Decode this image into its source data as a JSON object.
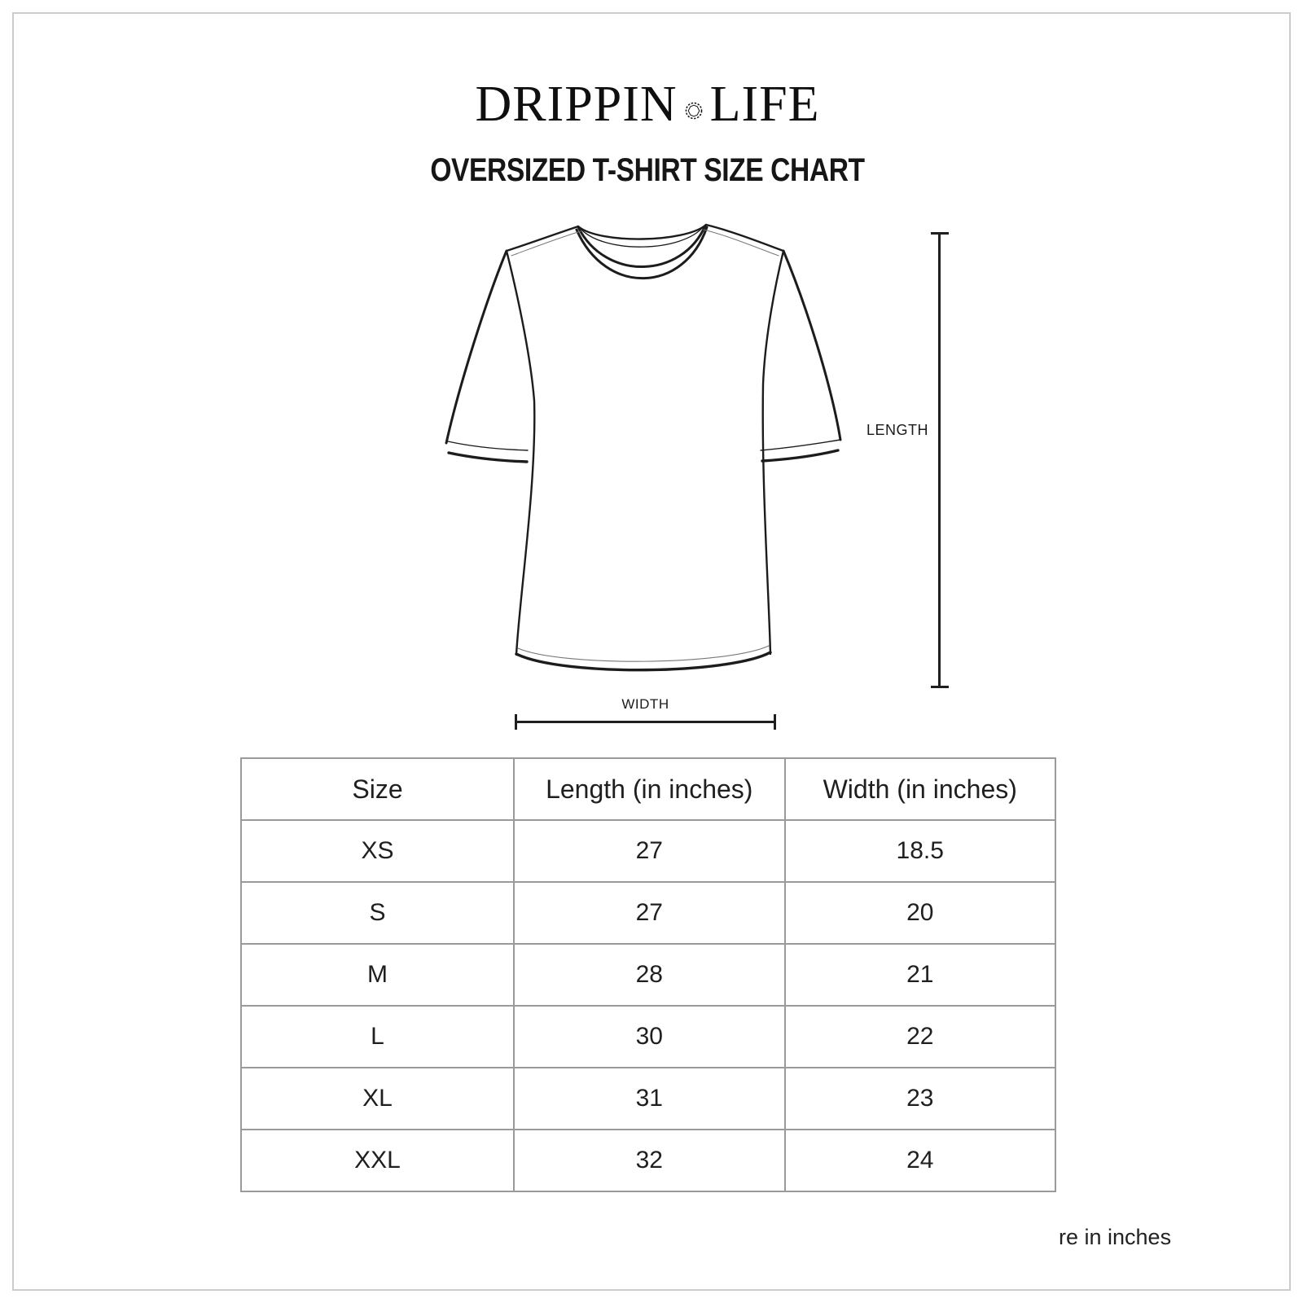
{
  "brand": {
    "name_left": "DRIPPIN",
    "name_right": "LIFE",
    "separator_icon": "gem-icon"
  },
  "title": "OVERSIZED T-SHIRT SIZE CHART",
  "diagram": {
    "length_label": "LENGTH",
    "width_label": "WIDTH",
    "tshirt_icon": "tshirt-outline-icon"
  },
  "size_table": {
    "columns": [
      "Size",
      "Length (in inches)",
      "Width (in inches)"
    ],
    "rows": [
      [
        "XS",
        "27",
        "18.5"
      ],
      [
        "S",
        "27",
        "20"
      ],
      [
        "M",
        "28",
        "21"
      ],
      [
        "L",
        "30",
        "22"
      ],
      [
        "XL",
        "31",
        "23"
      ],
      [
        "XXL",
        "32",
        "24"
      ]
    ]
  },
  "footer_note": "re in inches",
  "colors": {
    "text": "#1a1a1a",
    "line_art": "#1c1c1c",
    "table_border": "#9a9a9a",
    "page_frame": "#cccccc",
    "background": "#ffffff"
  }
}
